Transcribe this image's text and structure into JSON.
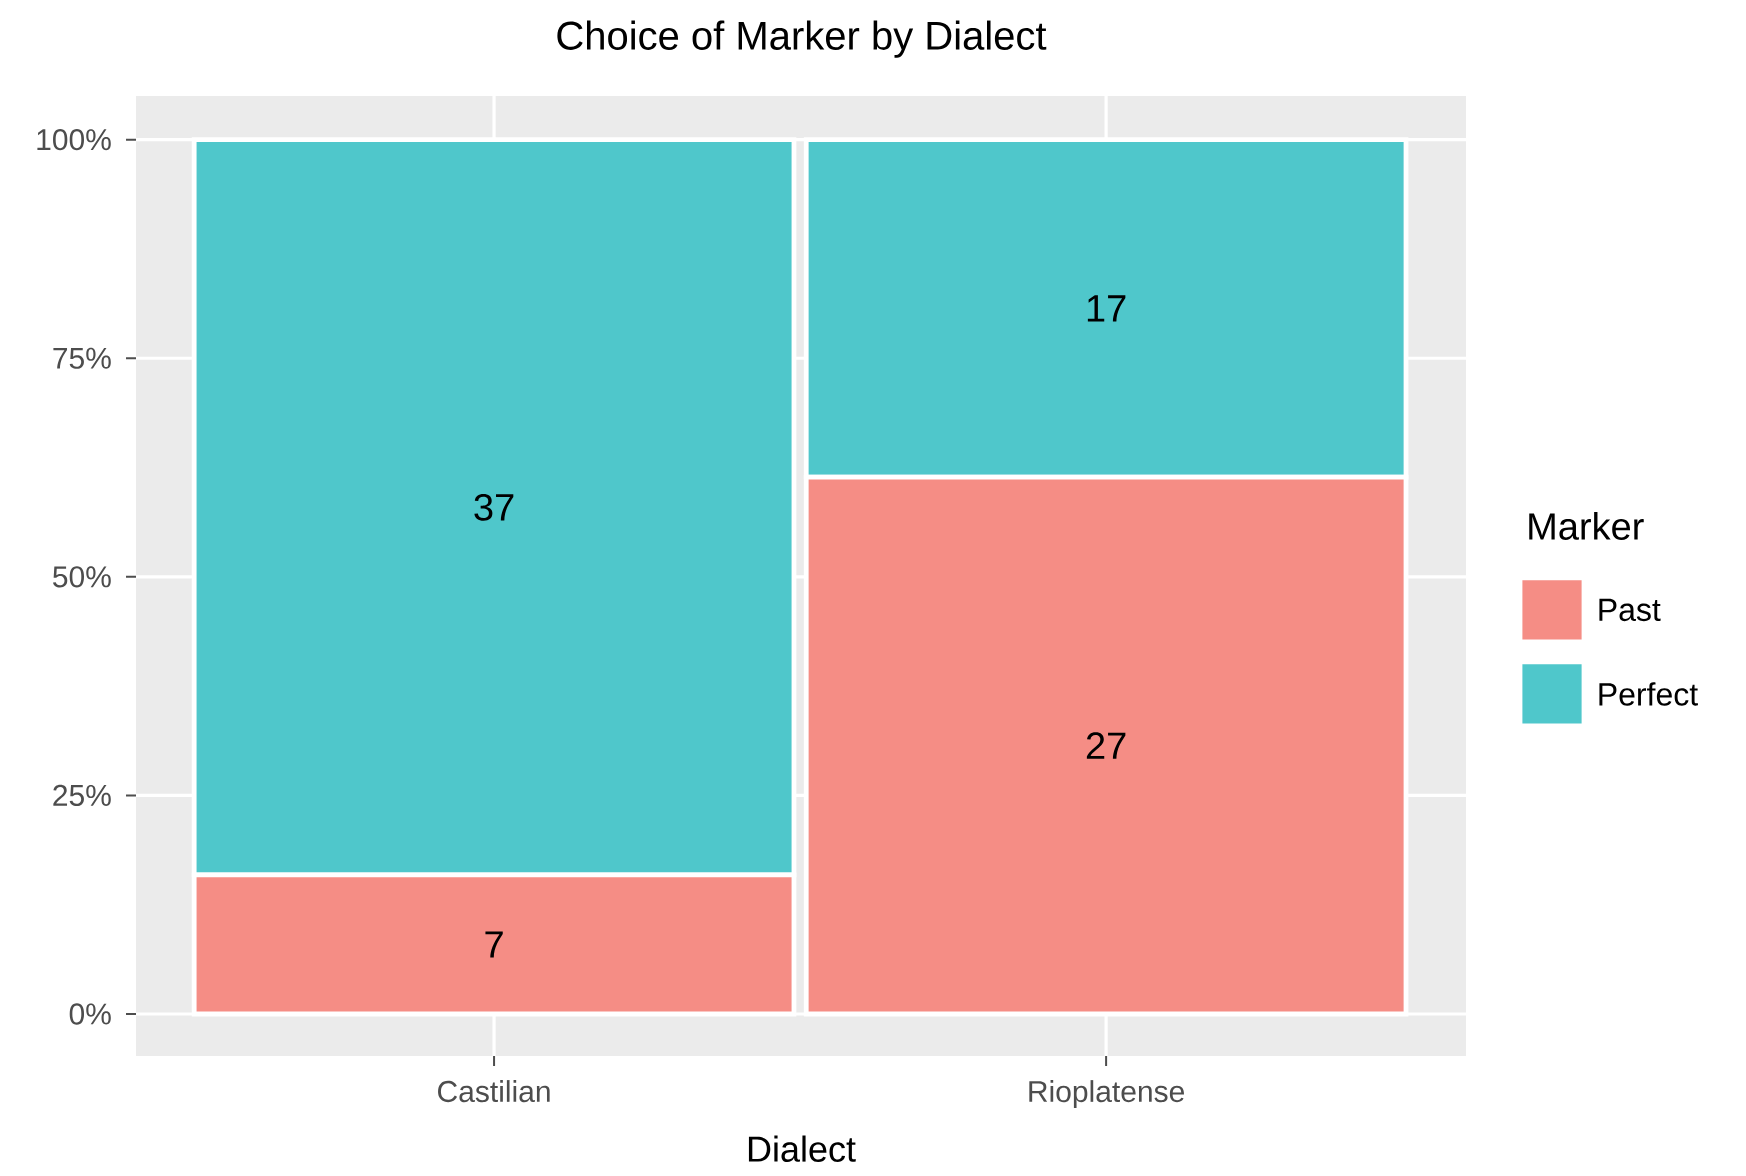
{
  "chart_data": {
    "type": "bar",
    "title": "Choice of Marker by Dialect",
    "xlabel": "Dialect",
    "legend_title": "Marker",
    "stacked": true,
    "categories": [
      "Castilian",
      "Rioplatense"
    ],
    "series": [
      {
        "name": "Past",
        "color": "#f58d85",
        "values": [
          15.9,
          61.4
        ]
      },
      {
        "name": "Perfect",
        "color": "#4fc7cb",
        "values": [
          84.1,
          38.6
        ]
      }
    ],
    "annotations": [
      "7",
      "27",
      "37",
      "17"
    ],
    "ylim": [
      0,
      100
    ],
    "yticks": [
      {
        "value": 0,
        "label": "0%"
      },
      {
        "value": 25,
        "label": "25%"
      },
      {
        "value": 50,
        "label": "50%"
      },
      {
        "value": 75,
        "label": "75%"
      },
      {
        "value": 100,
        "label": "100%"
      }
    ],
    "grid": true,
    "legend": "right"
  }
}
